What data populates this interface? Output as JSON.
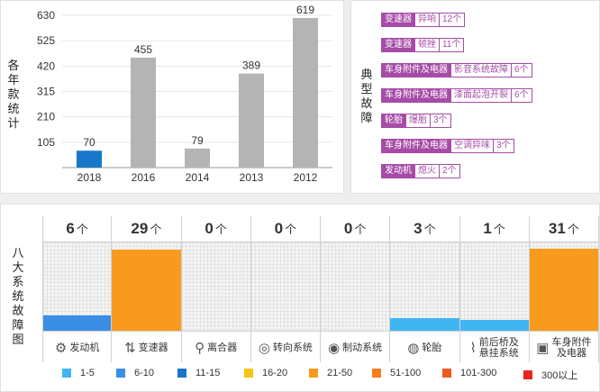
{
  "top_chart": {
    "ylabel": "各年款统计",
    "chart_data": {
      "type": "bar",
      "categories": [
        "2018",
        "2016",
        "2014",
        "2013",
        "2012"
      ],
      "values": [
        70,
        455,
        79,
        389,
        619
      ],
      "yticks": [
        105,
        210,
        315,
        420,
        525,
        630
      ],
      "ylim": [
        0,
        630
      ],
      "highlight_index": 0,
      "colors": {
        "default": "#b4b4b4",
        "highlight": "#1877c9"
      },
      "grid": true
    }
  },
  "faults": {
    "title": "典型故障",
    "items": [
      {
        "category": "变速器",
        "issue": "异响",
        "count": "12个"
      },
      {
        "category": "变速器",
        "issue": "顿挫",
        "count": "11个"
      },
      {
        "category": "车身附件及电器",
        "issue": "影音系统故障",
        "count": "6个"
      },
      {
        "category": "车身附件及电器",
        "issue": "漆面起泡开裂",
        "count": "6个"
      },
      {
        "category": "轮胎",
        "issue": "爆胎",
        "count": "3个"
      },
      {
        "category": "车身附件及电器",
        "issue": "空调异味",
        "count": "3个"
      },
      {
        "category": "发动机",
        "issue": "熄火",
        "count": "2个"
      }
    ]
  },
  "systems": {
    "title": "八大系统故障图",
    "unit": "个",
    "items": [
      {
        "name": "发动机",
        "count": 6,
        "icon": "engine-icon",
        "glyph": "⚙"
      },
      {
        "name": "变速器",
        "count": 29,
        "icon": "gear-shift-icon",
        "glyph": "⇅"
      },
      {
        "name": "离合器",
        "count": 0,
        "icon": "clutch-pedal-icon",
        "glyph": "⚲"
      },
      {
        "name": "转向系统",
        "count": 0,
        "icon": "steering-wheel-icon",
        "glyph": "◎"
      },
      {
        "name": "制动系统",
        "count": 0,
        "icon": "brake-disc-icon",
        "glyph": "◉"
      },
      {
        "name": "轮胎",
        "count": 3,
        "icon": "tire-icon",
        "glyph": "◍"
      },
      {
        "name": "前后桥及悬挂系统",
        "count": 1,
        "icon": "suspension-icon",
        "glyph": "⌇"
      },
      {
        "name": "车身附件及电器",
        "count": 31,
        "icon": "battery-icon",
        "glyph": "▣"
      }
    ],
    "legend": [
      {
        "label": "1-5",
        "color": "#3fb6f2"
      },
      {
        "label": "6-10",
        "color": "#3a8ee6"
      },
      {
        "label": "11-15",
        "color": "#1877c9"
      },
      {
        "label": "16-20",
        "color": "#f5c518"
      },
      {
        "label": "21-50",
        "color": "#f79a1e"
      },
      {
        "label": "51-100",
        "color": "#f57d1f"
      },
      {
        "label": "101-300",
        "color": "#ee5a1f"
      },
      {
        "label": "300以上",
        "color": "#e8251f"
      }
    ]
  }
}
